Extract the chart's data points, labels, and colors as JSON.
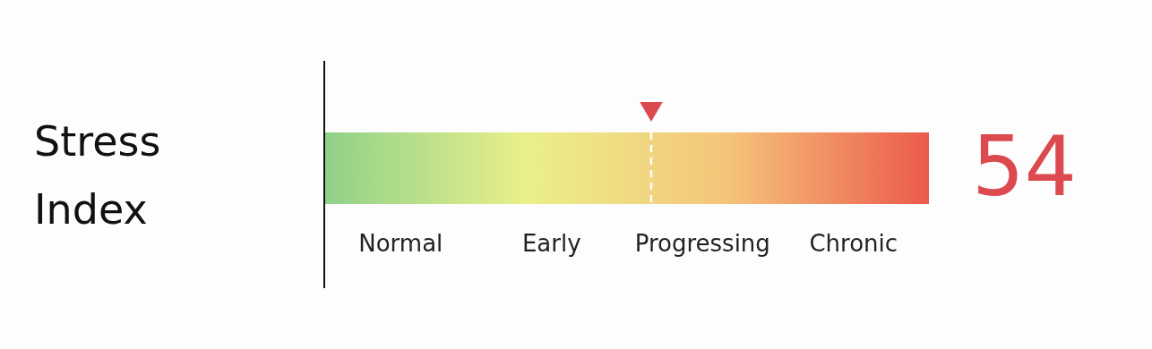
{
  "chart_data": {
    "type": "other",
    "title": "Stress Index",
    "bands": [
      {
        "axis": "x",
        "label": "Normal",
        "color": "#8fd18a"
      },
      {
        "axis": "x",
        "label": "Early",
        "color": "#eaf08a"
      },
      {
        "axis": "x",
        "label": "Progressing",
        "color": "#f5c47a"
      },
      {
        "axis": "x",
        "label": "Chronic",
        "color": "#ec5a4c"
      }
    ],
    "values": [
      54
    ],
    "color": "#dc4a50",
    "data_labels": true
  }
}
